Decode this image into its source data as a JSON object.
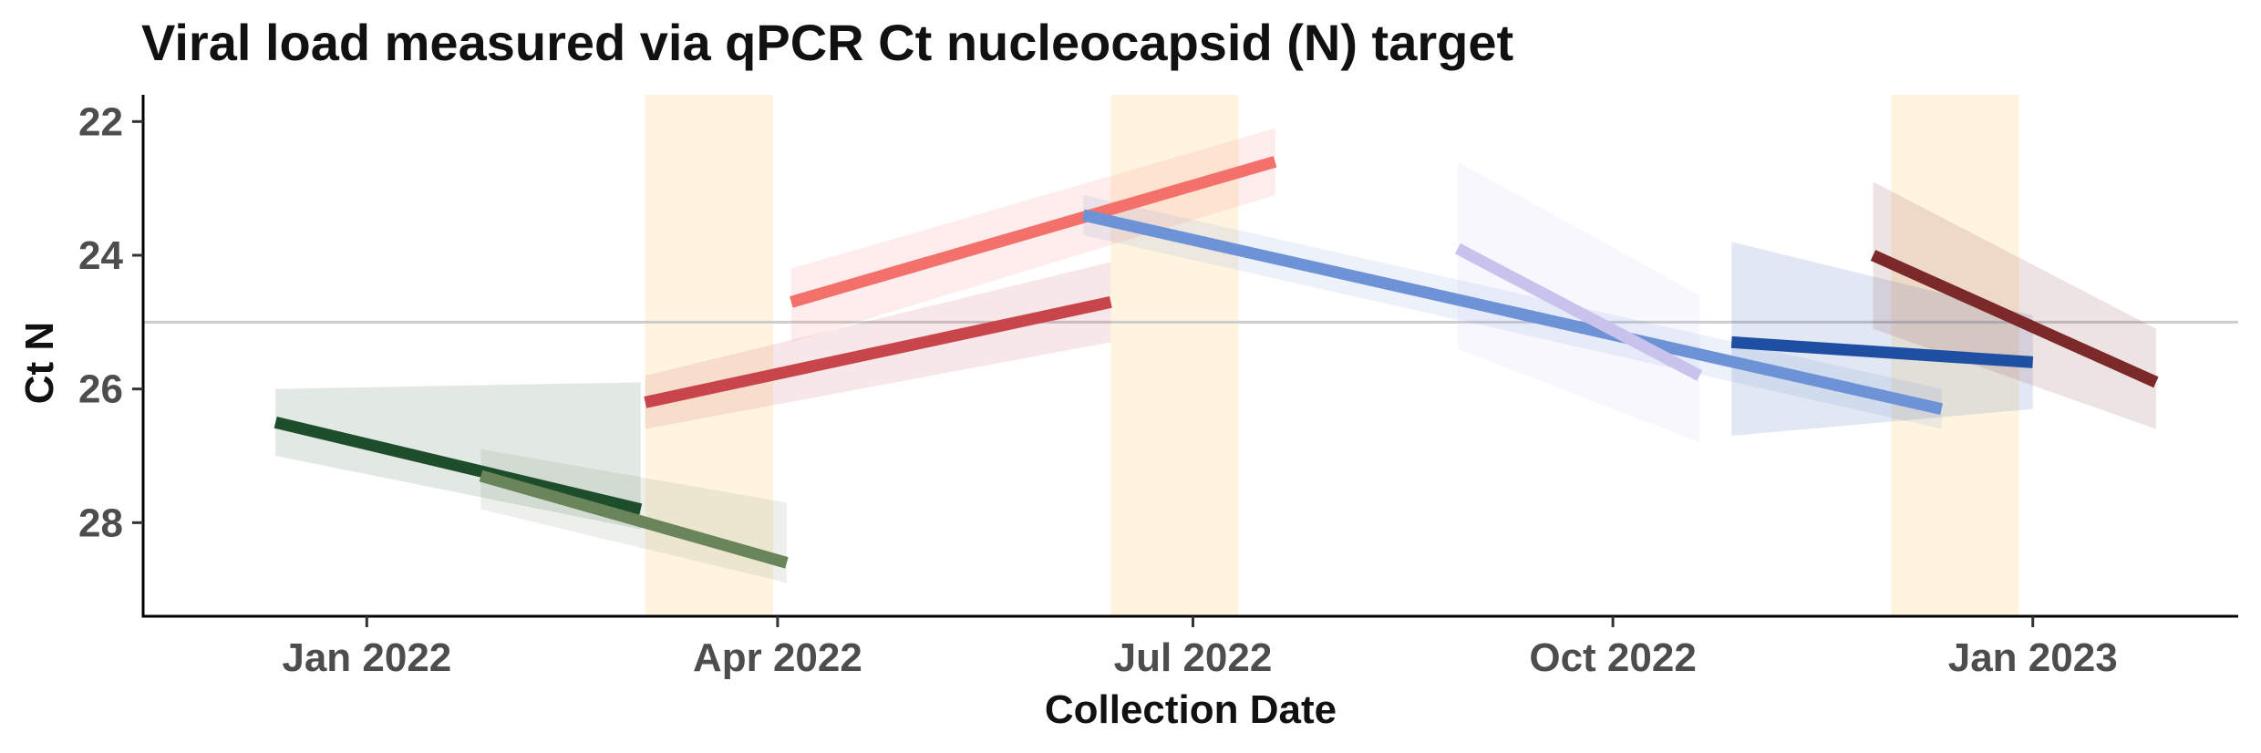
{
  "chart_data": {
    "type": "line",
    "title": "Viral load measured via qPCR Ct nucleocapsid (N) target",
    "xlabel": "Collection Date",
    "ylabel": "Ct N",
    "x_ticks": [
      {
        "date": "2022-01-01",
        "label": "Jan 2022"
      },
      {
        "date": "2022-04-01",
        "label": "Apr 2022"
      },
      {
        "date": "2022-07-01",
        "label": "Jul 2022"
      },
      {
        "date": "2022-10-01",
        "label": "Oct 2022"
      },
      {
        "date": "2023-01-01",
        "label": "Jan 2023"
      }
    ],
    "xlim": [
      "2021-11-13",
      "2023-02-15"
    ],
    "y_ticks": [
      22,
      24,
      26,
      28
    ],
    "ylim": [
      29.4,
      21.6
    ],
    "y_reversed": true,
    "grid": false,
    "reference_line": {
      "y": 25,
      "color": "#cccccc"
    },
    "shaded_periods": [
      {
        "start": "2022-03-03",
        "end": "2022-03-31",
        "color": "#fff4e0"
      },
      {
        "start": "2022-06-13",
        "end": "2022-07-11",
        "color": "#fff4e0"
      },
      {
        "start": "2022-12-01",
        "end": "2022-12-29",
        "color": "#fff4e0"
      }
    ],
    "series": [
      {
        "color": "#1e4d2b",
        "x": [
          "2021-12-12",
          "2022-03-02"
        ],
        "y": [
          26.5,
          27.8
        ],
        "band_lower": [
          [
            26.0,
            25.9
          ],
          [
            27.4,
            27.0
          ]
        ],
        "band_upper": [
          [
            27.0,
            27.3
          ],
          [
            28.5,
            28.6
          ]
        ]
      },
      {
        "color": "#6b855a",
        "x": [
          "2022-01-26",
          "2022-04-03"
        ],
        "y": [
          27.3,
          28.6
        ],
        "band_lower": [
          [
            26.9,
            27.7
          ],
          [
            27.9,
            27.9
          ]
        ],
        "band_upper": [
          [
            27.8,
            28.6
          ],
          [
            29.3,
            29.3
          ]
        ]
      },
      {
        "color": "#c8464b",
        "x": [
          "2022-03-03",
          "2022-06-13"
        ],
        "y": [
          26.2,
          24.7
        ],
        "band_lower": [
          [
            25.8,
            24.1
          ],
          [
            24.2,
            24.2
          ]
        ],
        "band_upper": [
          [
            26.6,
            25.3
          ],
          [
            25.3,
            25.3
          ]
        ]
      },
      {
        "color": "#f4716b",
        "x": [
          "2022-04-04",
          "2022-07-19"
        ],
        "y": [
          24.7,
          22.6
        ],
        "band_lower": [
          [
            24.2,
            22.1
          ],
          [
            22.1,
            22.1
          ]
        ],
        "band_upper": [
          [
            25.3,
            23.1
          ],
          [
            23.1,
            23.1
          ]
        ]
      },
      {
        "color": "#6d93d6",
        "x": [
          "2022-06-07",
          "2022-12-12"
        ],
        "y": [
          23.4,
          26.3
        ],
        "band_lower": [
          [
            23.1,
            26.0
          ],
          [
            26.0,
            26.0
          ]
        ],
        "band_upper": [
          [
            23.7,
            26.6
          ],
          [
            26.6,
            26.6
          ]
        ]
      },
      {
        "color": "#c8c2ec",
        "x": [
          "2022-08-28",
          "2022-10-20"
        ],
        "y": [
          23.9,
          25.8
        ],
        "band_lower": [
          [
            22.6,
            24.6
          ],
          [
            24.6,
            24.6
          ]
        ],
        "band_upper": [
          [
            25.4,
            26.8
          ],
          [
            26.8,
            26.8
          ]
        ]
      },
      {
        "color": "#1f4fa3",
        "x": [
          "2022-10-27",
          "2023-01-01"
        ],
        "y": [
          25.3,
          25.6
        ],
        "band_lower": [
          [
            23.8,
            24.9
          ],
          [
            24.6,
            24.6
          ]
        ],
        "band_upper": [
          [
            26.7,
            26.3
          ],
          [
            26.3,
            26.3
          ]
        ]
      },
      {
        "color": "#7b2929",
        "x": [
          "2022-11-27",
          "2023-01-28"
        ],
        "y": [
          24.0,
          25.9
        ],
        "band_lower": [
          [
            22.9,
            25.1
          ],
          [
            25.1,
            25.1
          ]
        ],
        "band_upper": [
          [
            25.1,
            26.6
          ],
          [
            26.6,
            26.6
          ]
        ]
      }
    ]
  }
}
